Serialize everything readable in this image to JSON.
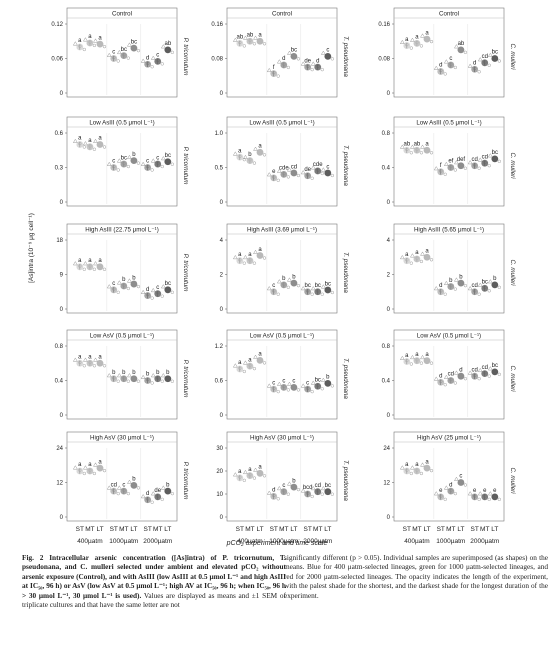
{
  "figure": {
    "y_axis_label": "[As]intra (10⁻⁹ μg cell⁻¹)",
    "x_axis_label": "pCO₂ experiment and time scale",
    "duration_ticks": [
      "ST",
      "MT",
      "LT"
    ],
    "co2_groups": [
      "400µatm",
      "1000µatm",
      "2000µatm"
    ],
    "species": [
      "P. tricornutum",
      "T. pseudonana",
      "C. mulleri"
    ],
    "colors": {
      "400": "#b9b9b9",
      "1000": "#8d8d8d",
      "2000": "#5d5d5d"
    }
  },
  "chart_data": [
    {
      "type": "scatter",
      "title": "Control",
      "species": "P. tricornutum",
      "ylim": [
        0,
        0.12
      ],
      "yticks": [
        "0",
        "0.06",
        "0.12"
      ],
      "values": [
        0.08,
        0.087,
        0.085,
        0.06,
        0.065,
        0.078,
        0.05,
        0.055,
        0.075
      ],
      "letters": [
        "a",
        "a",
        "a",
        "c",
        "bc",
        "bc",
        "d",
        "c",
        "ab"
      ]
    },
    {
      "type": "scatter",
      "title": "Control",
      "species": "T. pseudonana",
      "ylim": [
        0,
        0.16
      ],
      "yticks": [
        "0",
        "0.08",
        "0.16"
      ],
      "values": [
        0.115,
        0.12,
        0.12,
        0.045,
        0.065,
        0.085,
        0.06,
        0.06,
        0.085
      ],
      "letters": [
        "ab",
        "ab",
        "a",
        "f",
        "d",
        "bc",
        "de",
        "d",
        "c"
      ]
    },
    {
      "type": "scatter",
      "title": "Control",
      "species": "C. mulleri",
      "ylim": [
        0,
        0.16
      ],
      "yticks": [
        "0",
        "0.08",
        "0.16"
      ],
      "values": [
        0.11,
        0.115,
        0.125,
        0.05,
        0.065,
        0.1,
        0.055,
        0.07,
        0.08
      ],
      "letters": [
        "a",
        "a",
        "a",
        "d",
        "c",
        "ab",
        "d",
        "cd",
        "bc"
      ]
    },
    {
      "type": "scatter",
      "title": "Low AsIII (0.5 μmol L⁻¹)",
      "species": "P. tricornutum",
      "ylim": [
        0,
        0.6
      ],
      "yticks": [
        "0",
        "0.3",
        "0.6"
      ],
      "values": [
        0.5,
        0.48,
        0.5,
        0.3,
        0.33,
        0.36,
        0.3,
        0.33,
        0.35
      ],
      "letters": [
        "a",
        "a",
        "a",
        "c",
        "bc",
        "b",
        "c",
        "c",
        "bc"
      ]
    },
    {
      "type": "scatter",
      "title": "Low AsIII (0.5 μmol L⁻¹)",
      "species": "T. pseudonana",
      "ylim": [
        0,
        1.0
      ],
      "yticks": [
        "0",
        "0.5",
        "1.0"
      ],
      "values": [
        0.65,
        0.6,
        0.72,
        0.35,
        0.4,
        0.42,
        0.38,
        0.45,
        0.42
      ],
      "letters": [
        "a",
        "b",
        "a",
        "e",
        "cde",
        "cd",
        "de",
        "cde",
        "c"
      ]
    },
    {
      "type": "scatter",
      "title": "Low AsIII (0.5 μmol L⁻¹)",
      "species": "C. mulleri",
      "ylim": [
        0,
        0.8
      ],
      "yticks": [
        "0",
        "0.4",
        "0.8"
      ],
      "values": [
        0.6,
        0.6,
        0.6,
        0.35,
        0.4,
        0.42,
        0.42,
        0.45,
        0.5
      ],
      "letters": [
        "ab",
        "ab",
        "a",
        "f",
        "ef",
        "def",
        "cd",
        "cd",
        "bc"
      ]
    },
    {
      "type": "scatter",
      "title": "High AsIII (22.75 μmol L⁻¹)",
      "species": "P. tricornutum",
      "ylim": [
        0,
        18
      ],
      "yticks": [
        "0",
        "9",
        "18"
      ],
      "values": [
        11,
        11,
        11,
        5,
        6,
        6.5,
        3.5,
        4,
        5
      ],
      "letters": [
        "a",
        "a",
        "a",
        "c",
        "b",
        "b",
        "d",
        "c",
        "bc"
      ]
    },
    {
      "type": "scatter",
      "title": "High AsIII (3.69 μmol L⁻¹)",
      "species": "T. pseudonana",
      "ylim": [
        0,
        4
      ],
      "yticks": [
        "0",
        "2",
        "4"
      ],
      "values": [
        2.8,
        2.8,
        3.1,
        1.0,
        1.4,
        1.5,
        1.0,
        1.0,
        1.1
      ],
      "letters": [
        "a",
        "a",
        "a",
        "c",
        "b",
        "b",
        "bc",
        "bc",
        "bc"
      ]
    },
    {
      "type": "scatter",
      "title": "High AsIII (5.65 μmol L⁻¹)",
      "species": "C. mulleri",
      "ylim": [
        0,
        4
      ],
      "yticks": [
        "0",
        "2",
        "4"
      ],
      "values": [
        2.8,
        2.9,
        3.0,
        1.0,
        1.3,
        1.5,
        1.0,
        1.2,
        1.4
      ],
      "letters": [
        "a",
        "a",
        "a",
        "d",
        "b",
        "b",
        "cd",
        "bc",
        "b"
      ]
    },
    {
      "type": "scatter",
      "title": "Low AsV (0.5 μmol L⁻¹)",
      "species": "P. tricornutum",
      "ylim": [
        0,
        0.8
      ],
      "yticks": [
        "0",
        "0.4",
        "0.8"
      ],
      "values": [
        0.6,
        0.6,
        0.6,
        0.42,
        0.42,
        0.42,
        0.4,
        0.42,
        0.42
      ],
      "letters": [
        "a",
        "a",
        "a",
        "b",
        "b",
        "b",
        "b",
        "b",
        "b"
      ]
    },
    {
      "type": "scatter",
      "title": "Low AsV (0.5 μmol L⁻¹)",
      "species": "T. pseudonana",
      "ylim": [
        0,
        1.2
      ],
      "yticks": [
        "0",
        "0.6",
        "1.2"
      ],
      "values": [
        0.8,
        0.85,
        0.95,
        0.45,
        0.48,
        0.48,
        0.45,
        0.5,
        0.55
      ],
      "letters": [
        "a",
        "a",
        "a",
        "c",
        "c",
        "c",
        "c",
        "bc",
        "b"
      ]
    },
    {
      "type": "scatter",
      "title": "Low AsV (0.5 μmol L⁻¹)",
      "species": "C. mulleri",
      "ylim": [
        0,
        0.8
      ],
      "yticks": [
        "0",
        "0.4",
        "0.8"
      ],
      "values": [
        0.62,
        0.63,
        0.63,
        0.38,
        0.4,
        0.45,
        0.45,
        0.48,
        0.5
      ],
      "letters": [
        "a",
        "a",
        "a",
        "d",
        "cd",
        "d",
        "cd",
        "cd",
        "bc"
      ]
    },
    {
      "type": "scatter",
      "title": "High AsV (30 μmol L⁻¹)",
      "species": "P. tricornutum",
      "ylim": [
        0,
        24
      ],
      "yticks": [
        "0",
        "12",
        "24"
      ],
      "values": [
        16,
        16,
        17,
        9,
        9,
        11,
        6,
        7,
        9
      ],
      "letters": [
        "a",
        "a",
        "a",
        "cd",
        "c",
        "b",
        "d",
        "de",
        "b"
      ]
    },
    {
      "type": "scatter",
      "title": "High AsV (30 μmol L⁻¹)",
      "species": "T. pseudonana",
      "ylim": [
        0,
        30
      ],
      "yticks": [
        "0",
        "10",
        "20",
        "30"
      ],
      "values": [
        17,
        18,
        19,
        9,
        11,
        13,
        10,
        11,
        11
      ],
      "letters": [
        "a",
        "a",
        "a",
        "d",
        "c",
        "b",
        "bcd",
        "cd",
        "bc"
      ]
    },
    {
      "type": "scatter",
      "title": "High AsV (25 μmol L⁻¹)",
      "species": "C. mulleri",
      "ylim": [
        0,
        24
      ],
      "yticks": [
        "0",
        "12",
        "24"
      ],
      "values": [
        16,
        16,
        17,
        7,
        9,
        12,
        7,
        7,
        7
      ],
      "letters": [
        "a",
        "a",
        "a",
        "e",
        "d",
        "c",
        "e",
        "e",
        "e"
      ]
    }
  ],
  "caption": {
    "lead": "Fig. 2 Intracellular arsenic concentration ([As]intra) of P. tricornutum, T. pseudonana, and C. mulleri selected under ambient and elevated pCO₂ without arsenic exposure (Control), and with AsIII (low AsIII at 0.5 μmol L⁻¹ and high AsIII at IC₅₀, 96 h) or AsV (low AsV at 0.5 μmol L⁻¹; high AV at IC₅₀, 96 h; when IC₅₀, 96 h > 30 μmol L⁻¹, 30 μmol L⁻¹ is used).",
    "rest_left": "Values are displayed as means and ±1 SEM of triplicate cultures and that have the same letter are not",
    "right": "significantly different (p > 0.05). Individual samples are superimposed (as shapes) on the means. Blue for 400 μatm-selected lineages, green for 1000 μatm-selected lineages, and red for 2000 μatm-selected lineages. The opacity indicates the length of the experiment, with the palest shade for the shortest, and the darkest shade for the longest duration of the experiment."
  }
}
